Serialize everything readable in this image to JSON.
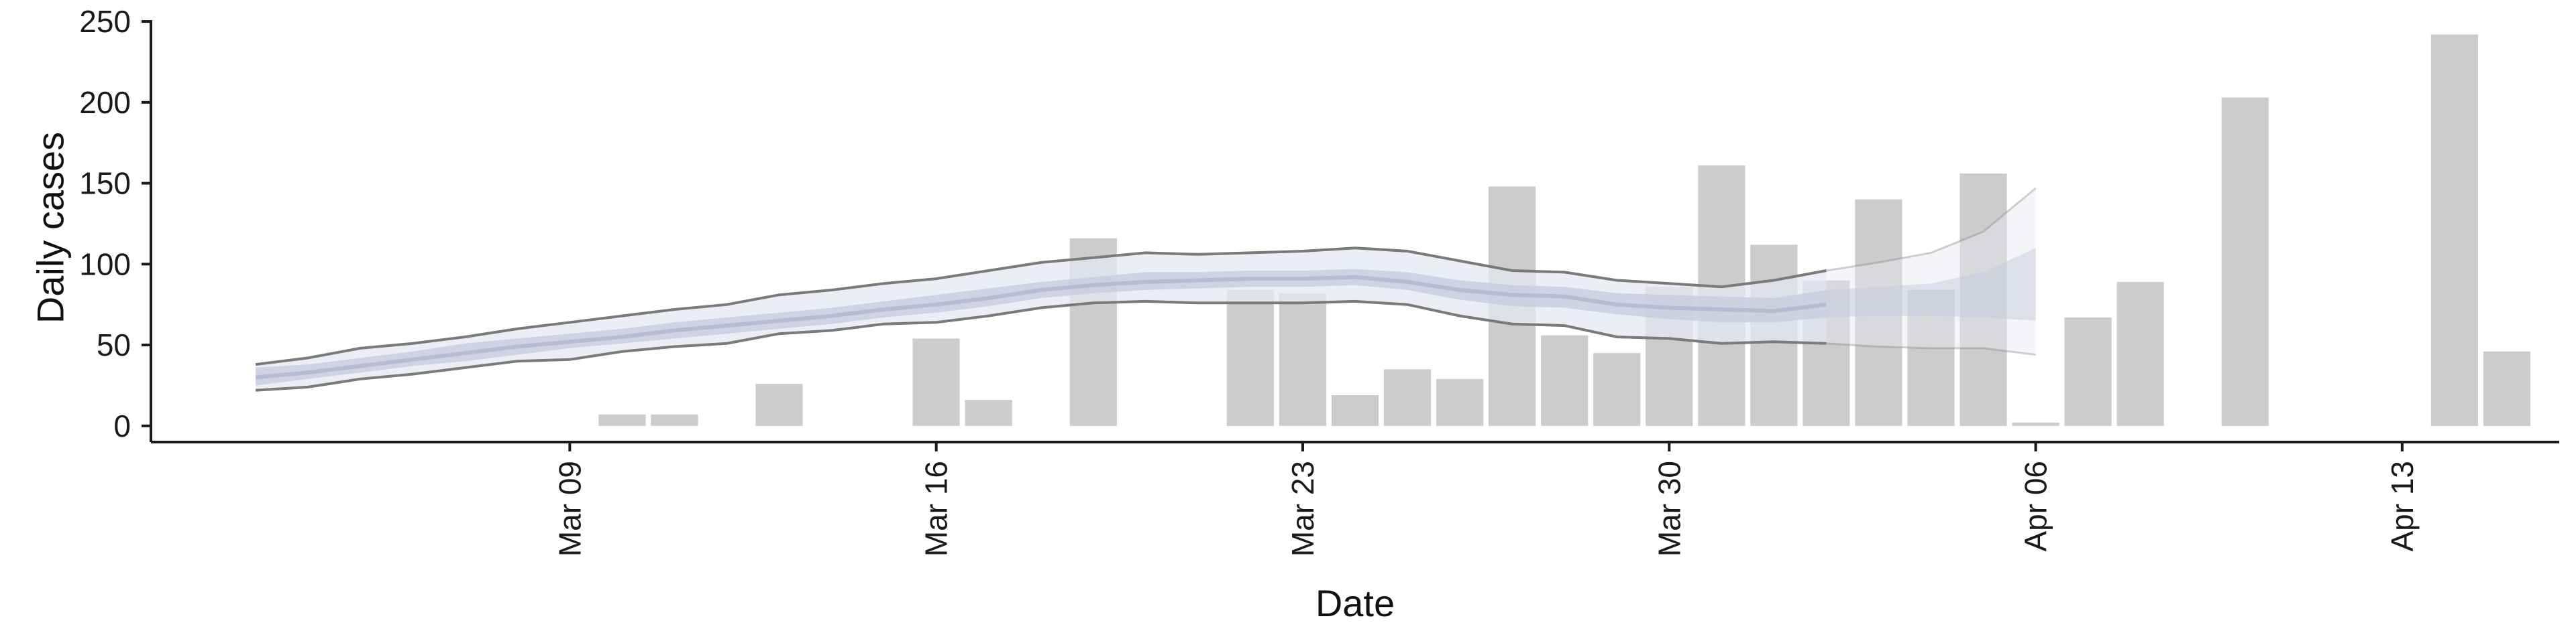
{
  "chart_data": {
    "type": "bar",
    "xlabel": "Date",
    "ylabel": "Daily cases",
    "ylim": [
      -10,
      255
    ],
    "xlim": [
      "2020-03-01",
      "2020-04-16"
    ],
    "grid": false,
    "legend": "none",
    "yticks": [
      {
        "value": 0,
        "label": "0"
      },
      {
        "value": 50,
        "label": "50"
      },
      {
        "value": 100,
        "label": "100"
      },
      {
        "value": 150,
        "label": "150"
      },
      {
        "value": 200,
        "label": "200"
      },
      {
        "value": 250,
        "label": "250"
      }
    ],
    "xticks": [
      {
        "date": "2020-03-09",
        "label": "Mar 09"
      },
      {
        "date": "2020-03-16",
        "label": "Mar 16"
      },
      {
        "date": "2020-03-23",
        "label": "Mar 23"
      },
      {
        "date": "2020-03-30",
        "label": "Mar 30"
      },
      {
        "date": "2020-04-06",
        "label": "Apr 06"
      },
      {
        "date": "2020-04-13",
        "label": "Apr 13"
      }
    ],
    "bars": [
      {
        "date": "2020-03-10",
        "value": 7
      },
      {
        "date": "2020-03-11",
        "value": 7
      },
      {
        "date": "2020-03-13",
        "value": 26
      },
      {
        "date": "2020-03-16",
        "value": 54
      },
      {
        "date": "2020-03-17",
        "value": 16
      },
      {
        "date": "2020-03-19",
        "value": 116
      },
      {
        "date": "2020-03-22",
        "value": 84
      },
      {
        "date": "2020-03-23",
        "value": 82
      },
      {
        "date": "2020-03-24",
        "value": 19
      },
      {
        "date": "2020-03-25",
        "value": 35
      },
      {
        "date": "2020-03-26",
        "value": 29
      },
      {
        "date": "2020-03-27",
        "value": 148
      },
      {
        "date": "2020-03-28",
        "value": 56
      },
      {
        "date": "2020-03-29",
        "value": 45
      },
      {
        "date": "2020-03-30",
        "value": 86
      },
      {
        "date": "2020-03-31",
        "value": 161
      },
      {
        "date": "2020-04-01",
        "value": 112
      },
      {
        "date": "2020-04-02",
        "value": 90
      },
      {
        "date": "2020-04-03",
        "value": 140
      },
      {
        "date": "2020-04-04",
        "value": 84
      },
      {
        "date": "2020-04-05",
        "value": 156
      },
      {
        "date": "2020-04-06",
        "value": 2
      },
      {
        "date": "2020-04-07",
        "value": 67
      },
      {
        "date": "2020-04-08",
        "value": 89
      },
      {
        "date": "2020-04-10",
        "value": 203
      },
      {
        "date": "2020-04-14",
        "value": 242
      },
      {
        "date": "2020-04-15",
        "value": 46
      }
    ],
    "estimate": {
      "dates": [
        "2020-03-03",
        "2020-03-04",
        "2020-03-05",
        "2020-03-06",
        "2020-03-07",
        "2020-03-08",
        "2020-03-09",
        "2020-03-10",
        "2020-03-11",
        "2020-03-12",
        "2020-03-13",
        "2020-03-14",
        "2020-03-15",
        "2020-03-16",
        "2020-03-17",
        "2020-03-18",
        "2020-03-19",
        "2020-03-20",
        "2020-03-21",
        "2020-03-22",
        "2020-03-23",
        "2020-03-24",
        "2020-03-25",
        "2020-03-26",
        "2020-03-27",
        "2020-03-28",
        "2020-03-29",
        "2020-03-30",
        "2020-03-31",
        "2020-04-01",
        "2020-04-02",
        "2020-04-03",
        "2020-04-04",
        "2020-04-05",
        "2020-04-06"
      ],
      "outer_low": [
        22,
        24,
        29,
        32,
        36,
        40,
        41,
        46,
        49,
        51,
        57,
        59,
        63,
        64,
        68,
        73,
        76,
        77,
        76,
        76,
        76,
        77,
        75,
        68,
        63,
        62,
        55,
        54,
        51,
        52,
        51,
        49,
        48,
        48,
        44
      ],
      "outer_high": [
        38,
        42,
        48,
        51,
        55,
        60,
        64,
        68,
        72,
        75,
        81,
        84,
        88,
        91,
        96,
        101,
        104,
        107,
        106,
        107,
        108,
        110,
        108,
        102,
        96,
        95,
        90,
        88,
        86,
        90,
        96,
        101,
        107,
        120,
        147
      ],
      "inner_low": [
        25,
        29,
        33,
        37,
        40,
        44,
        48,
        51,
        54,
        57,
        60,
        63,
        67,
        70,
        74,
        79,
        82,
        84,
        85,
        86,
        86,
        87,
        84,
        78,
        74,
        73,
        69,
        66,
        64,
        64,
        67,
        68,
        68,
        67,
        65
      ],
      "inner_high": [
        36,
        38,
        42,
        46,
        51,
        54,
        57,
        60,
        64,
        67,
        70,
        73,
        77,
        81,
        85,
        89,
        92,
        95,
        95,
        96,
        96,
        97,
        95,
        90,
        87,
        86,
        82,
        81,
        80,
        79,
        84,
        86,
        88,
        95,
        110
      ],
      "center": [
        30,
        33,
        37,
        41,
        45,
        49,
        52,
        55,
        59,
        62,
        65,
        68,
        72,
        75,
        79,
        84,
        87,
        89,
        90,
        91,
        91,
        92,
        89,
        84,
        81,
        80,
        75,
        73,
        72,
        71,
        75,
        76,
        77,
        80,
        85
      ],
      "forecast_from": "2020-04-02"
    },
    "colors": {
      "bar": "#cccccc",
      "outer_band": "#e6e8f2",
      "inner_band": "#c5cbdd",
      "center_line": "#b6bdd3",
      "bound_line": "#7a7a7a",
      "axis": "#1a1a1a"
    }
  }
}
